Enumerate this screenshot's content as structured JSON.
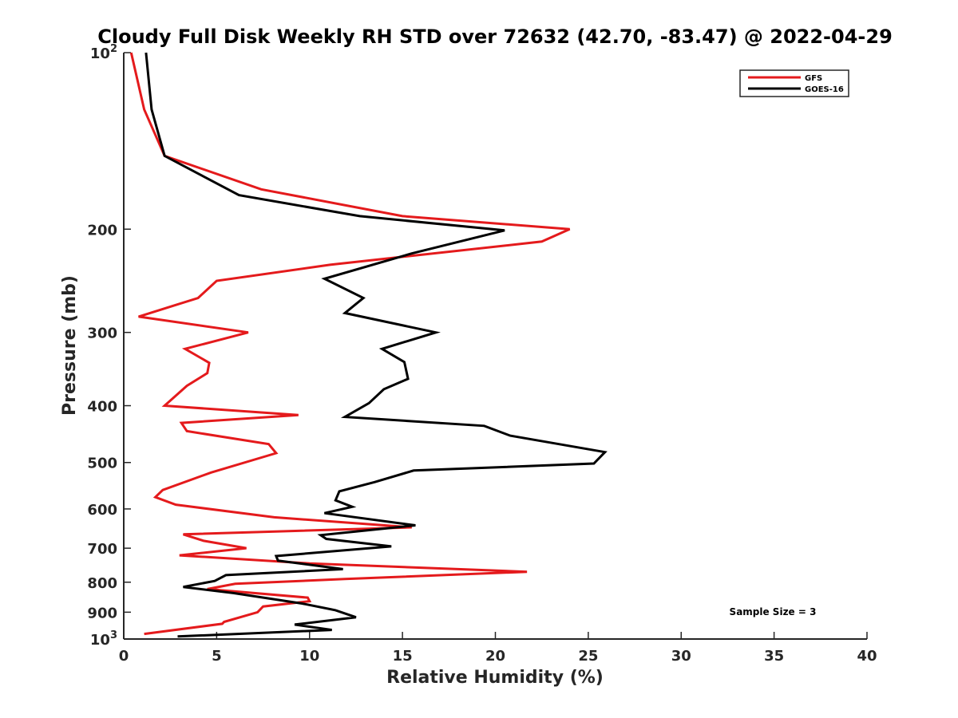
{
  "chart_data": {
    "type": "line",
    "title": "Cloudy Full Disk Weekly RH STD over 72632 (42.70, -83.47) @ 2022-04-29",
    "xlabel": "Relative Humidity (%)",
    "ylabel": "Pressure (mb)",
    "xlim": [
      0,
      40
    ],
    "ylim": [
      100,
      1000
    ],
    "y_scale": "log",
    "y_reversed": true,
    "grid": false,
    "legend_position": "top-right",
    "x_ticks": [
      "0",
      "5",
      "10",
      "15",
      "20",
      "25",
      "30",
      "35",
      "40"
    ],
    "y_ticks": [
      {
        "value": 100,
        "base": "10",
        "exp": "2"
      },
      {
        "value": 200,
        "label": "200"
      },
      {
        "value": 300,
        "label": "300"
      },
      {
        "value": 400,
        "label": "400"
      },
      {
        "value": 500,
        "label": "500"
      },
      {
        "value": 600,
        "label": "600"
      },
      {
        "value": 700,
        "label": "700"
      },
      {
        "value": 800,
        "label": "800"
      },
      {
        "value": 900,
        "label": "900"
      },
      {
        "value": 1000,
        "base": "10",
        "exp": "3"
      }
    ],
    "series": [
      {
        "name": "GFS",
        "color": "#e41a1c",
        "x": [
          0.4,
          1.1,
          2.2,
          7.4,
          15.0,
          24.0,
          22.5,
          11.1,
          5.0,
          4.0,
          0.8,
          6.7,
          3.3,
          4.6,
          4.5,
          3.4,
          2.2,
          9.4,
          3.1,
          3.4,
          7.8,
          8.2,
          4.7,
          2.1,
          1.7,
          2.8,
          8.1,
          15.5,
          3.2,
          4.3,
          6.6,
          3.0,
          10.0,
          21.7,
          11.9,
          6.0,
          4.5,
          9.9,
          10.0,
          7.5,
          7.2,
          5.4,
          5.3,
          1.1
        ],
        "y": [
          100,
          125,
          150,
          171,
          190,
          200,
          210,
          230,
          245,
          262,
          282,
          300,
          320,
          338,
          352,
          370,
          400,
          415,
          428,
          442,
          465,
          482,
          520,
          557,
          573,
          590,
          620,
          645,
          663,
          680,
          700,
          720,
          743,
          768,
          790,
          805,
          822,
          850,
          862,
          880,
          900,
          935,
          942,
          980
        ]
      },
      {
        "name": "GOES-16",
        "color": "#000000",
        "x": [
          1.2,
          1.5,
          2.2,
          6.2,
          12.7,
          20.5,
          15.5,
          10.8,
          12.9,
          11.9,
          16.8,
          13.9,
          15.1,
          15.3,
          14.0,
          13.2,
          11.9,
          19.4,
          20.8,
          25.9,
          25.3,
          15.6,
          13.5,
          11.6,
          11.4,
          12.3,
          10.8,
          15.7,
          10.6,
          10.9,
          14.4,
          8.2,
          8.3,
          11.8,
          5.5,
          4.9,
          3.2,
          5.9,
          9.6,
          11.4,
          12.5,
          9.2,
          11.2,
          2.9
        ],
        "y": [
          100,
          125,
          150,
          175,
          190,
          201,
          220,
          243,
          262,
          278,
          300,
          320,
          337,
          360,
          375,
          396,
          418,
          433,
          450,
          480,
          502,
          516,
          540,
          560,
          580,
          595,
          610,
          640,
          665,
          675,
          695,
          722,
          735,
          760,
          778,
          796,
          815,
          835,
          870,
          893,
          918,
          945,
          965,
          990
        ]
      }
    ],
    "annotation": "Sample Size = 3"
  }
}
